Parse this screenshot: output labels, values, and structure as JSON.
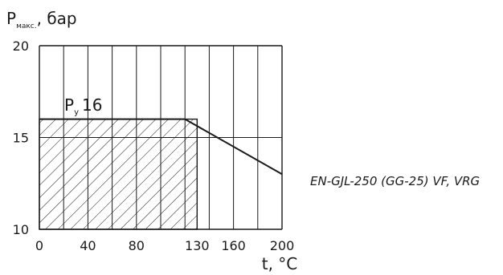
{
  "chart_data": {
    "type": "line",
    "ylabel": {
      "main": "P",
      "sub": "макс.",
      "suffix": ", бар"
    },
    "xlabel": "t, °C",
    "xlim": [
      0,
      200
    ],
    "ylim": [
      10,
      20
    ],
    "x_grid_step": 20,
    "y_grid_step": 5,
    "grid": true,
    "x_ticks": [
      {
        "value": 0,
        "label": "0"
      },
      {
        "value": 40,
        "label": "40"
      },
      {
        "value": 80,
        "label": "80"
      },
      {
        "value": 130,
        "label": "130"
      },
      {
        "value": 160,
        "label": "160"
      },
      {
        "value": 200,
        "label": "200"
      }
    ],
    "y_ticks": [
      {
        "value": 10,
        "label": "10"
      },
      {
        "value": 15,
        "label": "15"
      },
      {
        "value": 20,
        "label": "20"
      }
    ],
    "series": [
      {
        "x": [
          0,
          120,
          200
        ],
        "y": [
          16,
          16,
          13
        ]
      }
    ],
    "hatched_region": {
      "x": [
        0,
        130
      ],
      "y": [
        10,
        16
      ]
    },
    "nominal_label": {
      "main": "P",
      "sub": "у",
      "value": "16"
    },
    "annotation": "EN-GJL-250 (GG-25) VF, VRG"
  }
}
